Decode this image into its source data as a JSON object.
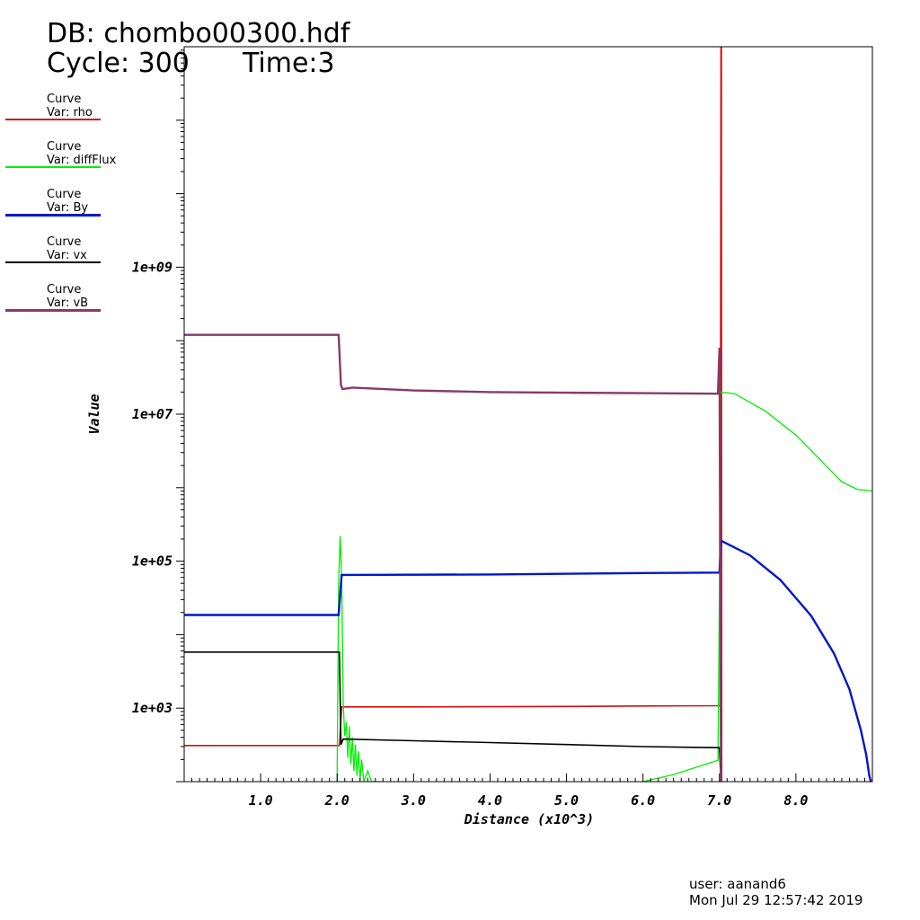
{
  "header": {
    "db": "DB: chombo00300.hdf",
    "cycle": "Cycle: 300",
    "time": "Time:3"
  },
  "footer": {
    "user": "user: aanand6",
    "date": "Mon Jul 29 12:57:42 2019"
  },
  "colors": {
    "rho": "#d01010",
    "diffFlux": "#00ee00",
    "By": "#0018c8",
    "vx": "#000000",
    "vB": "#883a6a"
  },
  "chart_data": {
    "type": "line",
    "title": "",
    "xlabel": "Distance (x10^3)",
    "ylabel": "Value",
    "xlim": [
      0,
      9.0
    ],
    "ylim": [
      100,
      1000000000000
    ],
    "yscale": "log",
    "grid": false,
    "legend_position": "left",
    "x_ticks": [
      {
        "value": 1,
        "label": "1.0"
      },
      {
        "value": 2,
        "label": "2.0"
      },
      {
        "value": 3,
        "label": "3.0"
      },
      {
        "value": 4,
        "label": "4.0"
      },
      {
        "value": 5,
        "label": "5.0"
      },
      {
        "value": 6,
        "label": "6.0"
      },
      {
        "value": 7,
        "label": "7.0"
      },
      {
        "value": 8,
        "label": "8.0"
      }
    ],
    "y_ticks": [
      {
        "value": 1000,
        "label": "1e+03"
      },
      {
        "value": 100000,
        "label": "1e+05"
      },
      {
        "value": 10000000,
        "label": "1e+07"
      },
      {
        "value": 1000000000,
        "label": "1e+09"
      }
    ],
    "series": [
      {
        "key": "rho",
        "name": "Curve",
        "var": "Var: rho",
        "width": 1.6,
        "points": [
          [
            0,
            310
          ],
          [
            1.99,
            310
          ],
          [
            2.03,
            310
          ],
          [
            2.06,
            1040
          ],
          [
            3,
            1040
          ],
          [
            5,
            1055
          ],
          [
            6,
            1070
          ],
          [
            7,
            1080
          ],
          [
            7.01,
            1080
          ],
          [
            7.02,
            2000000000000
          ],
          [
            7.025,
            2000000000000
          ],
          [
            7.03,
            100
          ]
        ]
      },
      {
        "key": "diffFlux",
        "name": "Curve",
        "var": "Var: diffFlux",
        "width": 1.3,
        "points": [
          [
            2.0,
            100
          ],
          [
            2.02,
            50000
          ],
          [
            2.04,
            220000
          ],
          [
            2.06,
            60000
          ],
          [
            2.08,
            1200
          ],
          [
            2.1,
            420
          ],
          [
            2.12,
            650
          ],
          [
            2.14,
            210
          ],
          [
            2.16,
            560
          ],
          [
            2.18,
            170
          ],
          [
            2.2,
            400
          ],
          [
            2.22,
            140
          ],
          [
            2.24,
            320
          ],
          [
            2.26,
            120
          ],
          [
            2.28,
            260
          ],
          [
            2.3,
            105
          ],
          [
            2.32,
            200
          ],
          [
            2.35,
            100
          ],
          [
            2.4,
            140
          ],
          [
            2.45,
            100
          ],
          [
            2.5,
            100
          ],
          [
            2.55,
            100
          ]
        ],
        "points2": [
          [
            6.0,
            100
          ],
          [
            6.4,
            125
          ],
          [
            6.8,
            170
          ],
          [
            6.98,
            195
          ],
          [
            7.0,
            40000
          ],
          [
            7.01,
            20000000
          ],
          [
            7.2,
            19000000
          ],
          [
            7.6,
            11000000
          ],
          [
            8.0,
            5200000
          ],
          [
            8.3,
            2500000
          ],
          [
            8.6,
            1200000
          ],
          [
            8.8,
            950000
          ],
          [
            9.0,
            900000
          ]
        ]
      },
      {
        "key": "By",
        "name": "Curve",
        "var": "Var: By",
        "width": 2.4,
        "points": [
          [
            0,
            18500
          ],
          [
            2.02,
            18500
          ],
          [
            2.06,
            65000
          ],
          [
            4,
            66000
          ],
          [
            6,
            69000
          ],
          [
            7.0,
            70000
          ],
          [
            7.02,
            190000
          ],
          [
            7.4,
            120000
          ],
          [
            7.8,
            55000
          ],
          [
            8.2,
            18000
          ],
          [
            8.5,
            5500
          ],
          [
            8.7,
            1800
          ],
          [
            8.85,
            500
          ],
          [
            8.92,
            230
          ],
          [
            8.96,
            120
          ],
          [
            8.98,
            100
          ]
        ]
      },
      {
        "key": "vx",
        "name": "Curve",
        "var": "Var: vx",
        "width": 1.6,
        "points": [
          [
            0,
            5800
          ],
          [
            2.03,
            5800
          ],
          [
            2.05,
            320
          ],
          [
            2.08,
            380
          ],
          [
            3,
            360
          ],
          [
            4,
            340
          ],
          [
            5,
            320
          ],
          [
            6,
            300
          ],
          [
            7,
            290
          ],
          [
            7.02,
            100
          ]
        ]
      },
      {
        "key": "vB",
        "name": "Curve",
        "var": "Var: vB",
        "width": 2.4,
        "points": [
          [
            0,
            120000000
          ],
          [
            2.02,
            120000000
          ],
          [
            2.05,
            25000000
          ],
          [
            2.07,
            22000000
          ],
          [
            2.2,
            23000000
          ],
          [
            3,
            21000000
          ],
          [
            4,
            20000000
          ],
          [
            5,
            19600000
          ],
          [
            6,
            19300000
          ],
          [
            6.98,
            19000000
          ],
          [
            7.0,
            80000000
          ],
          [
            7.02,
            100
          ]
        ]
      }
    ]
  }
}
